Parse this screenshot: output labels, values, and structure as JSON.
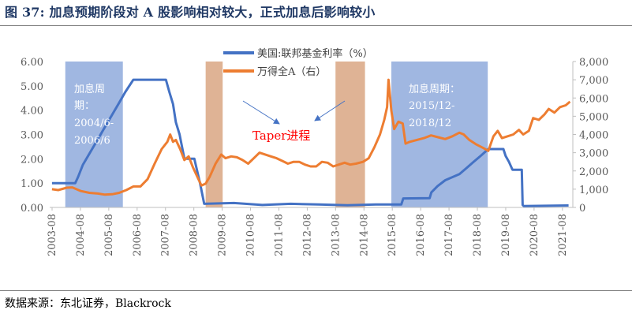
{
  "figure": {
    "title": "图 37:   加息预期阶段对 A 股影响相对较大，正式加息后影响较小",
    "source": "数据来源：东北证券，Blackrock"
  },
  "colors": {
    "fed_line": "#4472c4",
    "wind_line": "#ed7d31",
    "hike_band": "#8faadc",
    "taper_band": "#d9a682",
    "annotation_red": "#ff0000",
    "arrow": "#4472c4",
    "axis_text": "#595959"
  },
  "chart_data": {
    "type": "line",
    "x_ticks": [
      "2003-08",
      "2004-08",
      "2005-08",
      "2006-08",
      "2007-08",
      "2008-08",
      "2009-08",
      "2010-08",
      "2011-08",
      "2012-08",
      "2013-08",
      "2014-08",
      "2015-08",
      "2016-08",
      "2017-08",
      "2018-08",
      "2019-08",
      "2020-08",
      "2021-08"
    ],
    "y_left": {
      "ticks": [
        "0.00",
        "1.00",
        "2.00",
        "3.00",
        "4.00",
        "5.00",
        "6.00"
      ],
      "min": 0,
      "max": 6
    },
    "y_right": {
      "ticks": [
        "0",
        "1,000",
        "2,000",
        "3,000",
        "4,000",
        "5,000",
        "6,000",
        "7,000",
        "8,000"
      ],
      "min": 0,
      "max": 8000
    },
    "series": [
      {
        "name": "美国:联邦基金利率（%）",
        "axis": "left",
        "color": "#4472c4",
        "points": [
          [
            2003.58,
            1.0
          ],
          [
            2004.4,
            1.0
          ],
          [
            2004.5,
            1.25
          ],
          [
            2004.67,
            1.75
          ],
          [
            2004.92,
            2.25
          ],
          [
            2005.17,
            2.75
          ],
          [
            2005.42,
            3.25
          ],
          [
            2005.67,
            3.75
          ],
          [
            2005.92,
            4.25
          ],
          [
            2006.17,
            4.75
          ],
          [
            2006.45,
            5.25
          ],
          [
            2007.0,
            5.25
          ],
          [
            2007.6,
            5.25
          ],
          [
            2007.72,
            4.75
          ],
          [
            2007.85,
            4.25
          ],
          [
            2007.95,
            3.5
          ],
          [
            2008.08,
            3.0
          ],
          [
            2008.25,
            2.0
          ],
          [
            2008.6,
            2.0
          ],
          [
            2008.8,
            1.0
          ],
          [
            2008.95,
            0.15
          ],
          [
            2010.0,
            0.18
          ],
          [
            2011.0,
            0.1
          ],
          [
            2012.0,
            0.15
          ],
          [
            2013.0,
            0.12
          ],
          [
            2014.0,
            0.09
          ],
          [
            2015.0,
            0.12
          ],
          [
            2015.9,
            0.12
          ],
          [
            2015.97,
            0.37
          ],
          [
            2016.9,
            0.38
          ],
          [
            2016.96,
            0.62
          ],
          [
            2017.18,
            0.88
          ],
          [
            2017.45,
            1.12
          ],
          [
            2017.95,
            1.37
          ],
          [
            2018.2,
            1.62
          ],
          [
            2018.45,
            1.87
          ],
          [
            2018.7,
            2.12
          ],
          [
            2018.97,
            2.4
          ],
          [
            2019.5,
            2.4
          ],
          [
            2019.58,
            2.12
          ],
          [
            2019.7,
            1.87
          ],
          [
            2019.82,
            1.55
          ],
          [
            2020.15,
            1.55
          ],
          [
            2020.18,
            0.1
          ],
          [
            2020.22,
            0.06
          ],
          [
            2021.8,
            0.08
          ]
        ]
      },
      {
        "name": "万得全A（右）",
        "axis": "right",
        "color": "#ed7d31",
        "points": [
          [
            2003.58,
            1000
          ],
          [
            2003.8,
            950
          ],
          [
            2004.1,
            1080
          ],
          [
            2004.3,
            1100
          ],
          [
            2004.6,
            900
          ],
          [
            2004.9,
            800
          ],
          [
            2005.2,
            760
          ],
          [
            2005.45,
            700
          ],
          [
            2005.7,
            720
          ],
          [
            2005.95,
            800
          ],
          [
            2006.2,
            950
          ],
          [
            2006.45,
            1150
          ],
          [
            2006.7,
            1150
          ],
          [
            2006.95,
            1550
          ],
          [
            2007.2,
            2400
          ],
          [
            2007.45,
            3200
          ],
          [
            2007.65,
            3600
          ],
          [
            2007.75,
            4000
          ],
          [
            2007.85,
            3600
          ],
          [
            2007.95,
            3700
          ],
          [
            2008.1,
            3200
          ],
          [
            2008.25,
            2600
          ],
          [
            2008.4,
            2800
          ],
          [
            2008.55,
            2200
          ],
          [
            2008.7,
            1700
          ],
          [
            2008.85,
            1200
          ],
          [
            2009.0,
            1300
          ],
          [
            2009.15,
            1700
          ],
          [
            2009.35,
            2400
          ],
          [
            2009.55,
            2900
          ],
          [
            2009.7,
            2700
          ],
          [
            2009.9,
            2800
          ],
          [
            2010.1,
            2750
          ],
          [
            2010.3,
            2600
          ],
          [
            2010.5,
            2400
          ],
          [
            2010.7,
            2700
          ],
          [
            2010.9,
            3000
          ],
          [
            2011.1,
            2900
          ],
          [
            2011.3,
            2800
          ],
          [
            2011.5,
            2700
          ],
          [
            2011.7,
            2550
          ],
          [
            2011.9,
            2400
          ],
          [
            2012.1,
            2500
          ],
          [
            2012.3,
            2500
          ],
          [
            2012.5,
            2350
          ],
          [
            2012.7,
            2250
          ],
          [
            2012.9,
            2250
          ],
          [
            2013.1,
            2500
          ],
          [
            2013.3,
            2450
          ],
          [
            2013.5,
            2250
          ],
          [
            2013.7,
            2350
          ],
          [
            2013.9,
            2450
          ],
          [
            2014.1,
            2350
          ],
          [
            2014.3,
            2400
          ],
          [
            2014.55,
            2500
          ],
          [
            2014.75,
            2700
          ],
          [
            2014.95,
            3300
          ],
          [
            2015.15,
            4000
          ],
          [
            2015.3,
            4800
          ],
          [
            2015.4,
            5500
          ],
          [
            2015.45,
            7000
          ],
          [
            2015.55,
            5300
          ],
          [
            2015.65,
            4300
          ],
          [
            2015.8,
            4700
          ],
          [
            2015.95,
            4600
          ],
          [
            2016.05,
            3500
          ],
          [
            2016.2,
            3600
          ],
          [
            2016.45,
            3700
          ],
          [
            2016.7,
            3800
          ],
          [
            2016.95,
            3950
          ],
          [
            2017.2,
            3850
          ],
          [
            2017.45,
            3750
          ],
          [
            2017.7,
            3900
          ],
          [
            2017.95,
            4100
          ],
          [
            2018.1,
            4000
          ],
          [
            2018.3,
            3700
          ],
          [
            2018.55,
            3450
          ],
          [
            2018.8,
            3250
          ],
          [
            2018.97,
            3100
          ],
          [
            2019.15,
            3900
          ],
          [
            2019.3,
            4200
          ],
          [
            2019.45,
            3800
          ],
          [
            2019.65,
            3900
          ],
          [
            2019.85,
            4000
          ],
          [
            2020.05,
            4250
          ],
          [
            2020.2,
            4000
          ],
          [
            2020.4,
            4200
          ],
          [
            2020.55,
            4900
          ],
          [
            2020.75,
            4800
          ],
          [
            2020.95,
            5100
          ],
          [
            2021.1,
            5400
          ],
          [
            2021.3,
            5200
          ],
          [
            2021.5,
            5500
          ],
          [
            2021.7,
            5600
          ],
          [
            2021.85,
            5800
          ]
        ]
      }
    ],
    "bands": [
      {
        "kind": "hike",
        "from": 2004.05,
        "to": 2006.08
      },
      {
        "kind": "taper",
        "from": 2009.0,
        "to": 2009.6
      },
      {
        "kind": "taper",
        "from": 2013.58,
        "to": 2014.62
      },
      {
        "kind": "hike",
        "from": 2015.55,
        "to": 2018.95
      }
    ],
    "annotations": [
      "加息周",
      "期：",
      "2004/6-",
      "2006/6",
      "加息周期：",
      "2015/12-",
      "2018/12",
      "Taper进程"
    ]
  }
}
